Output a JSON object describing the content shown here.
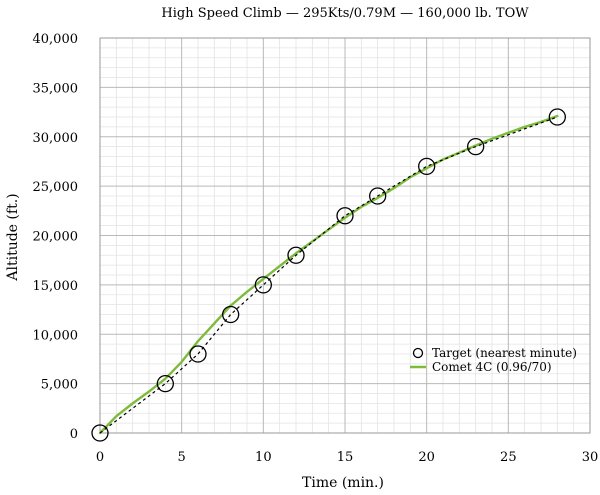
{
  "chart_data": {
    "type": "line",
    "title": "High Speed Climb — 295Kts/0.79M — 160,000 lb. TOW",
    "xlabel": "Time (min.)",
    "ylabel": "Altitude (ft.)",
    "xlim": [
      0,
      30
    ],
    "ylim": [
      0,
      40000
    ],
    "x_ticks": [
      0,
      5,
      10,
      15,
      20,
      25,
      30
    ],
    "y_ticks": [
      0,
      5000,
      10000,
      15000,
      20000,
      25000,
      30000,
      35000,
      40000
    ],
    "x_tick_labels": [
      "0",
      "5",
      "10",
      "15",
      "20",
      "25",
      "30"
    ],
    "y_tick_labels": [
      "0",
      "5,000",
      "10,000",
      "15,000",
      "20,000",
      "25,000",
      "30,000",
      "35,000",
      "40,000"
    ],
    "grid": true,
    "minor_grid": true,
    "legend_position": "lower-right",
    "series": [
      {
        "name": "Target (nearest minute)",
        "style": "scatter-open-circle-dotted-line",
        "color": "#000000",
        "x": [
          0,
          4,
          6,
          8,
          10,
          12,
          15,
          17,
          20,
          23,
          28
        ],
        "y": [
          0,
          5000,
          8000,
          12000,
          15000,
          18000,
          22000,
          24000,
          27000,
          29000,
          32000
        ]
      },
      {
        "name": "Comet 4C (0.96/70)",
        "style": "line",
        "color": "#7dbb3a",
        "x": [
          0,
          1,
          2,
          3,
          4,
          5,
          6,
          7,
          8,
          9,
          10,
          11,
          12,
          13,
          14,
          15,
          16,
          17,
          18,
          19,
          20,
          21,
          22,
          23,
          24,
          25,
          26,
          27,
          28
        ],
        "y": [
          0,
          1700,
          3000,
          4200,
          5500,
          7200,
          9300,
          11100,
          12900,
          14300,
          15600,
          16900,
          18200,
          19400,
          20600,
          21800,
          22900,
          23800,
          24800,
          25900,
          26800,
          27700,
          28400,
          29100,
          29800,
          30400,
          31000,
          31500,
          32100
        ]
      }
    ]
  }
}
